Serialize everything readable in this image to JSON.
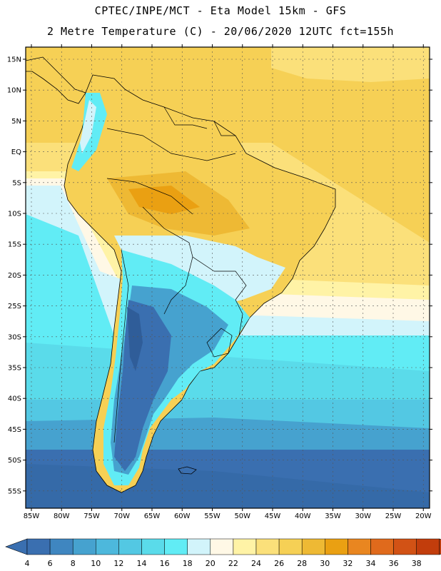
{
  "header": {
    "line1": "CPTEC/INPE/MCT -  Eta Model 15km - GFS",
    "line2": "2 Metre Temperature (C) - 20/06/2020 12UTC fct=155h"
  },
  "map": {
    "lat_labels": [
      "15N",
      "10N",
      "5N",
      "EQ",
      "5S",
      "10S",
      "15S",
      "20S",
      "25S",
      "30S",
      "35S",
      "40S",
      "45S",
      "50S",
      "55S"
    ],
    "lon_labels": [
      "85W",
      "80W",
      "75W",
      "70W",
      "65W",
      "60W",
      "55W",
      "50W",
      "45W",
      "40W",
      "35W",
      "30W",
      "25W",
      "20W"
    ]
  },
  "colorbar": {
    "labels": [
      "4",
      "6",
      "8",
      "10",
      "12",
      "14",
      "16",
      "18",
      "20",
      "22",
      "24",
      "26",
      "28",
      "30",
      "32",
      "34",
      "36",
      "38"
    ],
    "colors": [
      "#3a6fb0",
      "#3f86c0",
      "#46a2cf",
      "#4db8dc",
      "#53c8e3",
      "#5adbea",
      "#61ecf5",
      "#d2f4fb",
      "#fff8e6",
      "#fff3a6",
      "#fbe07a",
      "#f6d055",
      "#eeb934",
      "#eaa012",
      "#e98620",
      "#e06a1c",
      "#d25215",
      "#c23d0c"
    ],
    "low_color": "#3a6fb0",
    "high_color": "#c23d0c"
  }
}
